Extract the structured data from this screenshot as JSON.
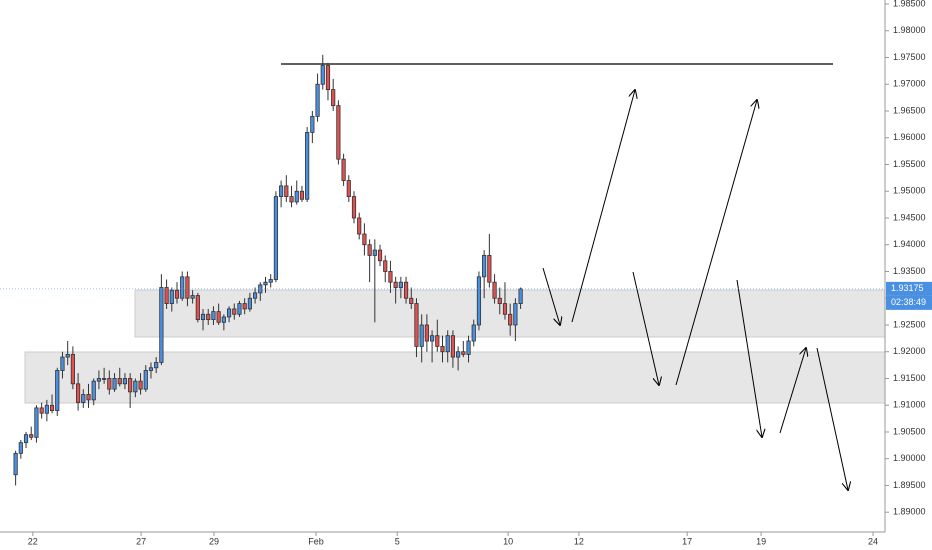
{
  "chart_data": {
    "type": "candlestick",
    "x": [
      0,
      1,
      2,
      3,
      4,
      5,
      6,
      7,
      8,
      9,
      10,
      11,
      12,
      13,
      14,
      15,
      16,
      17,
      18,
      19,
      20,
      21,
      22,
      23,
      24,
      25,
      26,
      27,
      28,
      29,
      30,
      31,
      32,
      33,
      34,
      35,
      36,
      37,
      38,
      39,
      40,
      41,
      42,
      43,
      44,
      45,
      46,
      47,
      48,
      49,
      50,
      51,
      52,
      53,
      54,
      55,
      56,
      57,
      58,
      59,
      60,
      61,
      62,
      63,
      64,
      65,
      66,
      67,
      68,
      69,
      70,
      71,
      72,
      73,
      74,
      75,
      76,
      77,
      78,
      79,
      80,
      81,
      82,
      83,
      84,
      85,
      86,
      87,
      88,
      89,
      90,
      91,
      92,
      93,
      94,
      95,
      96,
      97
    ],
    "open": [
      1.897,
      1.901,
      1.903,
      1.9045,
      1.904,
      1.9095,
      1.9085,
      1.91,
      1.909,
      1.9165,
      1.919,
      1.9195,
      1.914,
      1.9105,
      1.912,
      1.911,
      1.9145,
      1.915,
      1.915,
      1.913,
      1.915,
      1.914,
      1.915,
      1.9125,
      1.9145,
      1.913,
      1.9165,
      1.917,
      1.918,
      1.932,
      1.929,
      1.9315,
      1.93,
      1.934,
      1.93,
      1.9305,
      1.926,
      1.927,
      1.926,
      1.9275,
      1.9255,
      1.9265,
      1.928,
      1.927,
      1.929,
      1.928,
      1.93,
      1.931,
      1.9325,
      1.933,
      1.9335,
      1.949,
      1.951,
      1.949,
      1.948,
      1.95,
      1.9485,
      1.961,
      1.964,
      1.97,
      1.9735,
      1.969,
      1.966,
      1.956,
      1.952,
      1.949,
      1.945,
      1.942,
      1.94,
      1.938,
      1.939,
      1.937,
      1.935,
      1.933,
      1.932,
      1.933,
      1.93,
      1.929,
      1.921,
      1.925,
      1.922,
      1.923,
      1.921,
      1.92,
      1.923,
      1.919,
      1.92,
      1.9195,
      1.922,
      1.925,
      1.934,
      1.938,
      1.933,
      1.93,
      1.929,
      1.927,
      1.925,
      1.929
    ],
    "high": [
      1.9015,
      1.9035,
      1.905,
      1.906,
      1.91,
      1.9105,
      1.911,
      1.912,
      1.917,
      1.92,
      1.922,
      1.921,
      1.916,
      1.913,
      1.914,
      1.915,
      1.9165,
      1.917,
      1.9165,
      1.916,
      1.917,
      1.916,
      1.916,
      1.915,
      1.916,
      1.9175,
      1.918,
      1.919,
      1.9345,
      1.9335,
      1.932,
      1.933,
      1.935,
      1.935,
      1.9315,
      1.931,
      1.928,
      1.928,
      1.9285,
      1.929,
      1.927,
      1.9285,
      1.929,
      1.9295,
      1.93,
      1.931,
      1.932,
      1.933,
      1.934,
      1.9345,
      1.95,
      1.952,
      1.953,
      1.951,
      1.952,
      1.951,
      1.962,
      1.965,
      1.972,
      1.9755,
      1.974,
      1.971,
      1.967,
      1.957,
      1.953,
      1.95,
      1.946,
      1.944,
      1.941,
      1.941,
      1.94,
      1.938,
      1.937,
      1.934,
      1.934,
      1.934,
      1.932,
      1.93,
      1.927,
      1.927,
      1.924,
      1.926,
      1.923,
      1.924,
      1.924,
      1.921,
      1.922,
      1.923,
      1.926,
      1.935,
      1.939,
      1.942,
      1.9345,
      1.932,
      1.933,
      1.929,
      1.93,
      1.932
    ],
    "low": [
      1.895,
      1.9,
      1.902,
      1.9035,
      1.903,
      1.9075,
      1.907,
      1.9085,
      1.908,
      1.915,
      1.9175,
      1.913,
      1.909,
      1.9095,
      1.9095,
      1.91,
      1.913,
      1.914,
      1.912,
      1.9125,
      1.9135,
      1.913,
      1.9095,
      1.9115,
      1.912,
      1.9125,
      1.915,
      1.916,
      1.9175,
      1.928,
      1.9275,
      1.929,
      1.9295,
      1.9285,
      1.929,
      1.9255,
      1.924,
      1.925,
      1.925,
      1.925,
      1.924,
      1.9255,
      1.926,
      1.9265,
      1.927,
      1.9275,
      1.929,
      1.9295,
      1.931,
      1.932,
      1.933,
      1.947,
      1.948,
      1.947,
      1.9475,
      1.948,
      1.948,
      1.959,
      1.963,
      1.969,
      1.967,
      1.965,
      1.955,
      1.951,
      1.948,
      1.944,
      1.941,
      1.938,
      1.933,
      1.9255,
      1.936,
      1.933,
      1.931,
      1.929,
      1.93,
      1.929,
      1.928,
      1.919,
      1.918,
      1.92,
      1.918,
      1.92,
      1.918,
      1.918,
      1.917,
      1.9165,
      1.919,
      1.918,
      1.921,
      1.924,
      1.93,
      1.932,
      1.929,
      1.927,
      1.926,
      1.923,
      1.922,
      1.928
    ],
    "close": [
      1.901,
      1.903,
      1.9045,
      1.904,
      1.9095,
      1.9085,
      1.91,
      1.909,
      1.9165,
      1.919,
      1.9195,
      1.914,
      1.9105,
      1.912,
      1.911,
      1.9145,
      1.915,
      1.915,
      1.913,
      1.915,
      1.914,
      1.915,
      1.9125,
      1.9145,
      1.913,
      1.9165,
      1.917,
      1.918,
      1.932,
      1.929,
      1.9315,
      1.93,
      1.934,
      1.93,
      1.9305,
      1.926,
      1.927,
      1.926,
      1.9275,
      1.9255,
      1.9265,
      1.928,
      1.927,
      1.929,
      1.928,
      1.93,
      1.931,
      1.9325,
      1.933,
      1.9335,
      1.949,
      1.951,
      1.949,
      1.948,
      1.95,
      1.9485,
      1.961,
      1.964,
      1.97,
      1.9735,
      1.969,
      1.966,
      1.956,
      1.952,
      1.949,
      1.945,
      1.942,
      1.94,
      1.938,
      1.939,
      1.937,
      1.935,
      1.933,
      1.932,
      1.933,
      1.93,
      1.929,
      1.921,
      1.925,
      1.922,
      1.923,
      1.921,
      1.92,
      1.923,
      1.919,
      1.92,
      1.9195,
      1.922,
      1.925,
      1.934,
      1.938,
      1.933,
      1.93,
      1.929,
      1.927,
      1.925,
      1.929,
      1.93175
    ],
    "up_color": "#4a90e2",
    "down_color": "#e05252",
    "xlim": [
      -3,
      167
    ],
    "xticks": [
      {
        "value": 3.3,
        "label": "22"
      },
      {
        "value": 24.1,
        "label": "27"
      },
      {
        "value": 38.1,
        "label": "29"
      },
      {
        "value": 57.7,
        "label": "Feb"
      },
      {
        "value": 73.3,
        "label": "5"
      },
      {
        "value": 94.6,
        "label": "10"
      },
      {
        "value": 108.2,
        "label": "12"
      },
      {
        "value": 129,
        "label": "17"
      },
      {
        "value": 143.2,
        "label": "19"
      },
      {
        "value": 164.7,
        "label": "24"
      }
    ],
    "ylim": [
      1.8863,
      1.98575
    ],
    "yticks": [
      {
        "value": 1.89,
        "label": "1.89000"
      },
      {
        "value": 1.895,
        "label": "1.89500"
      },
      {
        "value": 1.9,
        "label": "1.90000"
      },
      {
        "value": 1.905,
        "label": "1.90500"
      },
      {
        "value": 1.91,
        "label": "1.91000"
      },
      {
        "value": 1.915,
        "label": "1.91500"
      },
      {
        "value": 1.92,
        "label": "1.92000"
      },
      {
        "value": 1.925,
        "label": "1.92500"
      },
      {
        "value": 1.93,
        "label": "1.93000"
      },
      {
        "value": 1.935,
        "label": "1.93500"
      },
      {
        "value": 1.94,
        "label": "1.94000"
      },
      {
        "value": 1.945,
        "label": "1.94500"
      },
      {
        "value": 1.95,
        "label": "1.95000"
      },
      {
        "value": 1.955,
        "label": "1.95500"
      },
      {
        "value": 1.96,
        "label": "1.96000"
      },
      {
        "value": 1.965,
        "label": "1.96500"
      },
      {
        "value": 1.97,
        "label": "1.97000"
      },
      {
        "value": 1.975,
        "label": "1.97500"
      },
      {
        "value": 1.98,
        "label": "1.98000"
      },
      {
        "value": 1.985,
        "label": "1.98500"
      }
    ],
    "last_price": {
      "value": 1.93175,
      "label": "1.93175"
    },
    "countdown": "02:38:49"
  }
}
